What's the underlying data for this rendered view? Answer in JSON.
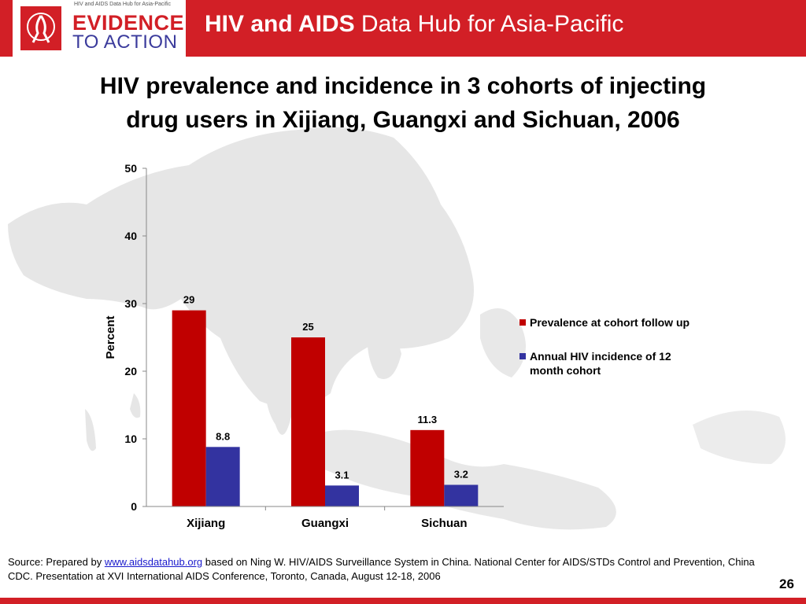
{
  "header": {
    "logo_tagline": "HIV and AIDS Data Hub for Asia-Pacific",
    "logo_line1": "EVIDENCE",
    "logo_line2": "TO ACTION",
    "hub_title_bold": "HIV and AIDS",
    "hub_title_rest": "Data Hub for Asia-Pacific"
  },
  "slide": {
    "title_line1": "HIV prevalence and incidence in 3 cohorts of injecting",
    "title_line2": "drug users in Xijiang, Guangxi and Sichuan, 2006"
  },
  "chart_data": {
    "type": "bar",
    "categories": [
      "Xijiang",
      "Guangxi",
      "Sichuan"
    ],
    "series": [
      {
        "name": "Prevalence at cohort follow up",
        "values": [
          29,
          25,
          11.3
        ],
        "color": "#c00000"
      },
      {
        "name": "Annual HIV incidence of 12 month cohort",
        "values": [
          8.8,
          3.1,
          3.2
        ],
        "color": "#3333a0"
      }
    ],
    "value_labels": [
      [
        "29",
        "25",
        "11.3"
      ],
      [
        "8.8",
        "3.1",
        "3.2"
      ]
    ],
    "ylabel": "Percent",
    "xlabel": "",
    "ylim": [
      0,
      50
    ],
    "yticks": [
      0,
      10,
      20,
      30,
      40,
      50
    ],
    "legend_position": "right",
    "grid": false
  },
  "footer": {
    "source_prefix": "Source: Prepared by",
    "source_link": "www.aidsdatahub.org",
    "source_rest": "based on Ning W. HIV/AIDS Surveillance System in China. National Center for AIDS/STDs Control and Prevention, China CDC. Presentation at XVI International AIDS Conference, Toronto, Canada, August 12-18, 2006",
    "page_number": "26"
  },
  "colors": {
    "brand_red": "#d21f26",
    "brand_blue": "#3b3b9c",
    "map_land": "#e6e6e6"
  }
}
